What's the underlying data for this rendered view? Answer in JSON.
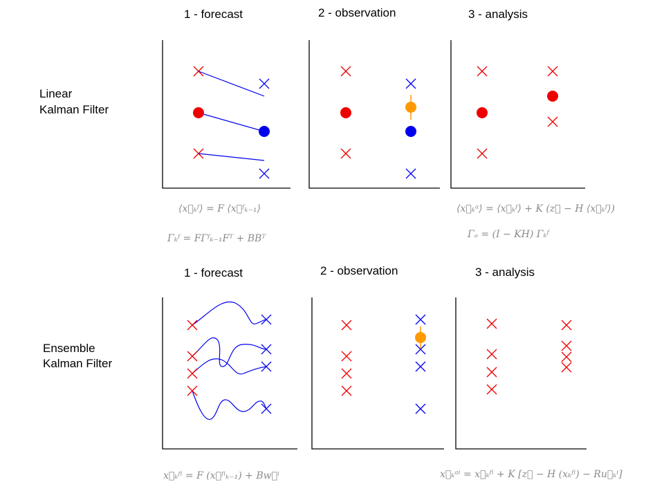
{
  "colors": {
    "forecast": "#0000ee",
    "analysis": "#ee0000",
    "observation": "#ff9900",
    "equation": "#8a8a8a"
  },
  "linear": {
    "label_line1": "Linear",
    "label_line2": "Kalman Filter",
    "panel_titles": [
      "1 - forecast",
      "2 - observation",
      "3 - analysis"
    ],
    "equations": {
      "forecast_mean": "⟨x⃗ₖᶠ⟩ = F ⟨x⃗ᶠₖ₋₁⟩",
      "forecast_cov": "Γₖᶠ = FΓᶠₖ₋₁Fᵀ + BBᵀ",
      "analysis_mean": "⟨x⃗ₖᵃ⟩ = ⟨x⃗ₖᶠ⟩ + K (z⃗ − H ⟨x⃗ₖᶠ⟩)",
      "analysis_cov": "Γₐ = (I − KH) Γₖᶠ"
    }
  },
  "ensemble": {
    "label_line1": "Ensemble",
    "label_line2": "Kalman Filter",
    "panel_titles": [
      "1 - forecast",
      "2 - observation",
      "3 - analysis"
    ],
    "equations": {
      "forecast": "x⃗ₖᶠⁱ = F (x⃗ᶠⁱₖ₋₁) + Bw⃗ⁱ",
      "analysis": "x⃗ₖᵃⁱ = x⃗ₖᶠⁱ + K [z⃗ − H (xₖᶠⁱ) − Ru⃗ₖⁱ]"
    }
  },
  "icons": {
    "state_marker": "cross",
    "mean_marker": "filled-circle"
  }
}
